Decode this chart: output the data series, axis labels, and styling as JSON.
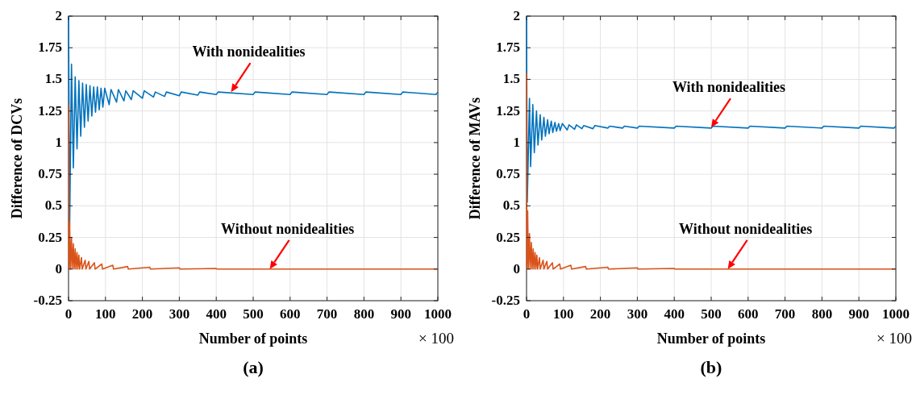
{
  "chart_data": [
    {
      "type": "line",
      "title": "(a)",
      "xlabel": "Number of points",
      "ylabel": "Difference of DCVs",
      "xlim": [
        0,
        1000
      ],
      "ylim": [
        -0.25,
        2
      ],
      "xticks": [
        0,
        100,
        200,
        300,
        400,
        500,
        600,
        700,
        800,
        900,
        1000
      ],
      "yticks": [
        -0.25,
        0,
        0.25,
        0.5,
        0.75,
        1,
        1.25,
        1.5,
        1.75,
        2
      ],
      "grid": true,
      "annotations": [
        "× 100",
        {
          "text": "With nonidealities",
          "x": 440,
          "y": 1.4
        },
        {
          "text": "Without nonidealities",
          "x": 545,
          "y": 0
        }
      ],
      "series": [
        {
          "color": "#0072bd",
          "x": [
            0,
            3,
            8,
            13,
            18,
            23,
            28,
            33,
            38,
            43,
            48,
            53,
            58,
            63,
            68,
            73,
            78,
            83,
            88,
            93,
            98,
            110,
            115,
            130,
            135,
            150,
            155,
            170,
            175,
            200,
            205,
            230,
            235,
            260,
            265,
            300,
            305,
            350,
            355,
            400,
            405,
            500,
            505,
            600,
            605,
            700,
            705,
            800,
            805,
            900,
            905,
            995,
            1000
          ],
          "values": [
            2.0,
            0.35,
            1.62,
            0.8,
            1.52,
            0.95,
            1.49,
            1.05,
            1.47,
            1.12,
            1.46,
            1.17,
            1.45,
            1.21,
            1.44,
            1.24,
            1.44,
            1.26,
            1.43,
            1.28,
            1.43,
            1.3,
            1.42,
            1.32,
            1.42,
            1.33,
            1.41,
            1.34,
            1.41,
            1.35,
            1.41,
            1.36,
            1.4,
            1.365,
            1.4,
            1.37,
            1.4,
            1.375,
            1.4,
            1.38,
            1.4,
            1.38,
            1.4,
            1.38,
            1.4,
            1.38,
            1.4,
            1.38,
            1.4,
            1.38,
            1.4,
            1.38,
            1.4
          ]
        },
        {
          "color": "#d95319",
          "x": [
            0,
            1,
            3,
            5,
            8,
            10,
            13,
            15,
            18,
            20,
            23,
            25,
            28,
            30,
            35,
            37,
            45,
            47,
            55,
            57,
            70,
            72,
            90,
            92,
            120,
            122,
            160,
            162,
            220,
            222,
            300,
            302,
            400,
            402,
            1000
          ],
          "values": [
            1.3,
            0,
            0.37,
            0,
            0.25,
            0,
            0.2,
            0,
            0.16,
            0,
            0.13,
            0,
            0.11,
            0,
            0.09,
            0,
            0.07,
            0,
            0.06,
            0,
            0.05,
            0,
            0.04,
            0,
            0.03,
            0,
            0.02,
            0,
            0.015,
            0,
            0.01,
            0,
            0.005,
            0,
            0
          ]
        }
      ]
    },
    {
      "type": "line",
      "title": "(b)",
      "xlabel": "Number of points",
      "ylabel": "Difference of MAVs",
      "xlim": [
        0,
        1000
      ],
      "ylim": [
        -0.25,
        2
      ],
      "xticks": [
        0,
        100,
        200,
        300,
        400,
        500,
        600,
        700,
        800,
        900,
        1000
      ],
      "yticks": [
        -0.25,
        0,
        0.25,
        0.5,
        0.75,
        1,
        1.25,
        1.5,
        1.75,
        2
      ],
      "grid": true,
      "annotations": [
        "× 100",
        {
          "text": "With nonidealities",
          "x": 500,
          "y": 1.12
        },
        {
          "text": "Without nonidealities",
          "x": 545,
          "y": 0
        }
      ],
      "series": [
        {
          "color": "#0072bd",
          "x": [
            0,
            2,
            8,
            11,
            17,
            21,
            27,
            31,
            37,
            41,
            47,
            51,
            57,
            61,
            67,
            71,
            77,
            81,
            87,
            91,
            97,
            110,
            115,
            130,
            135,
            150,
            155,
            180,
            185,
            220,
            225,
            260,
            265,
            300,
            305,
            400,
            405,
            500,
            505,
            600,
            605,
            700,
            705,
            800,
            805,
            900,
            905,
            995,
            1000
          ],
          "values": [
            2.0,
            0.53,
            1.35,
            0.81,
            1.3,
            0.92,
            1.25,
            0.98,
            1.22,
            1.02,
            1.2,
            1.05,
            1.18,
            1.07,
            1.17,
            1.08,
            1.16,
            1.09,
            1.15,
            1.095,
            1.15,
            1.1,
            1.14,
            1.105,
            1.14,
            1.11,
            1.135,
            1.11,
            1.135,
            1.115,
            1.13,
            1.115,
            1.13,
            1.115,
            1.13,
            1.115,
            1.13,
            1.115,
            1.13,
            1.115,
            1.13,
            1.115,
            1.13,
            1.115,
            1.13,
            1.115,
            1.13,
            1.115,
            1.13
          ]
        },
        {
          "color": "#d95319",
          "x": [
            0,
            1,
            3,
            5,
            8,
            10,
            13,
            15,
            18,
            20,
            23,
            25,
            28,
            30,
            35,
            37,
            45,
            47,
            55,
            57,
            70,
            72,
            90,
            92,
            120,
            122,
            160,
            162,
            220,
            222,
            300,
            302,
            400,
            402,
            1000
          ],
          "values": [
            1.55,
            0,
            0.46,
            0,
            0.28,
            0,
            0.21,
            0,
            0.16,
            0,
            0.13,
            0,
            0.11,
            0,
            0.09,
            0,
            0.07,
            0,
            0.06,
            0,
            0.05,
            0,
            0.04,
            0,
            0.03,
            0,
            0.02,
            0,
            0.015,
            0,
            0.01,
            0,
            0.005,
            0,
            0
          ]
        }
      ]
    }
  ]
}
